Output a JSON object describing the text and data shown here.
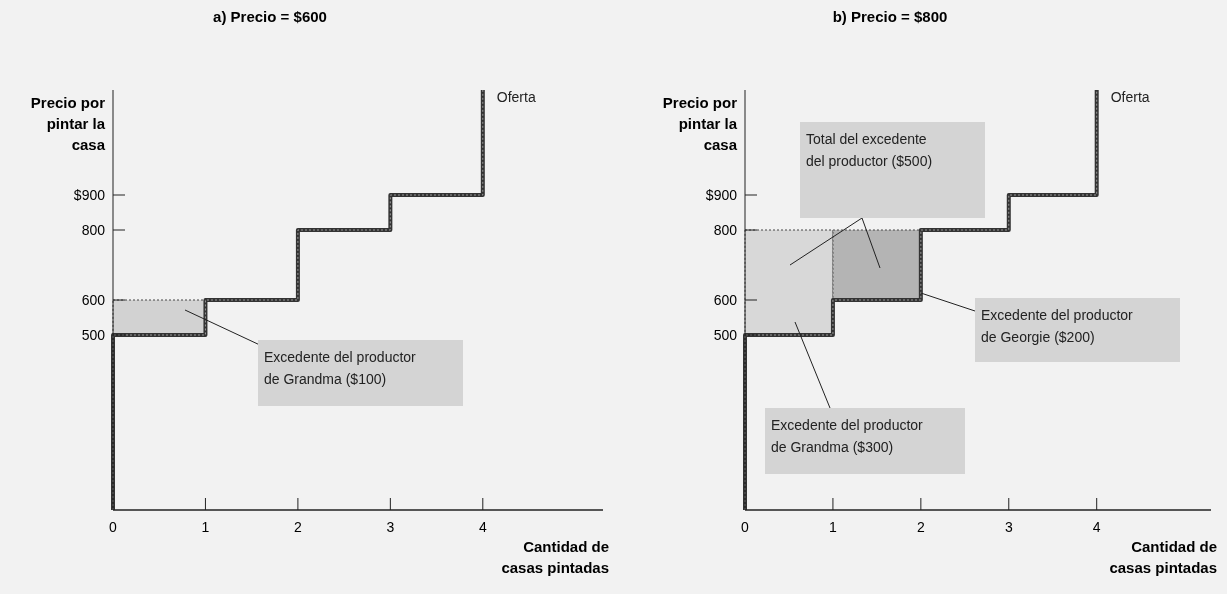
{
  "chart_data": [
    {
      "type": "step",
      "title": "a) Precio = $600",
      "xlabel": "Cantidad de casas pintadas",
      "ylabel": "Precio por pintar la casa",
      "xlim": [
        0,
        5.3
      ],
      "ylim": [
        0,
        1200
      ],
      "xticks": [
        0,
        1,
        2,
        3,
        4
      ],
      "yticks": [
        500,
        600,
        800,
        {
          "value": 900,
          "label": "$900"
        }
      ],
      "series": [
        {
          "type": "bar",
          "color": "#d2d2d2",
          "x": [
            0.5
          ],
          "values": [
            100
          ],
          "base": [
            500
          ]
        },
        {
          "name": "Oferta",
          "color": "#333333",
          "x": [
            0,
            0,
            1,
            2,
            3,
            4
          ],
          "values": [
            0,
            500,
            600,
            800,
            900,
            1200
          ]
        }
      ],
      "annotations": [
        "Excedente del productor de Grandma ($100)"
      ]
    },
    {
      "type": "step",
      "title": "b) Precio = $800",
      "xlabel": "Cantidad de casas pintadas",
      "ylabel": "Precio por pintar la casa",
      "xlim": [
        0,
        5.3
      ],
      "ylim": [
        0,
        1200
      ],
      "xticks": [
        0,
        1,
        2,
        3,
        4
      ],
      "yticks": [
        500,
        600,
        800,
        {
          "value": 900,
          "label": "$900"
        }
      ],
      "series": [
        {
          "type": "bar",
          "color": "#d8d8d8",
          "x": [
            0.5
          ],
          "values": [
            300
          ],
          "base": [
            500
          ]
        },
        {
          "type": "bar",
          "color": "#b4b4b4",
          "x": [
            1.5
          ],
          "values": [
            200
          ],
          "base": [
            600
          ]
        },
        {
          "name": "Oferta",
          "color": "#333333",
          "x": [
            0,
            0,
            1,
            2,
            3,
            4
          ],
          "values": [
            0,
            500,
            600,
            800,
            900,
            1200
          ]
        }
      ],
      "annotations": [
        "Total del excedente del productor ($500)",
        {
          "text": "Excedente del productor de Georgie ($200)",
          "x": 2,
          "y": 620
        },
        "Excedente del productor de Grandma ($300)"
      ]
    }
  ]
}
